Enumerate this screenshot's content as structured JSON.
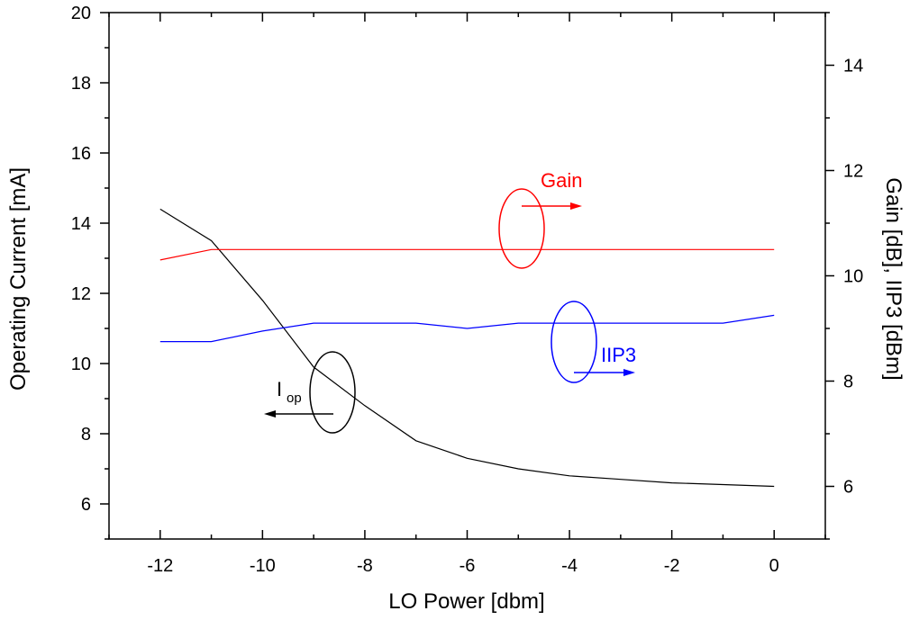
{
  "chart_data": {
    "type": "line",
    "xlabel": "LO Power [dbm]",
    "ylabel_left": "Operating Current [mA]",
    "ylabel_right": "Gain [dB], IIP3 [dBm]",
    "xlim": [
      -13,
      1
    ],
    "ylim_left": [
      5,
      20
    ],
    "ylim_right": [
      5,
      15
    ],
    "x_ticks": [
      -12,
      -10,
      -8,
      -6,
      -4,
      -2,
      0
    ],
    "x_minor_ticks": [
      -13,
      -11,
      -9,
      -7,
      -5,
      -3,
      -1,
      1
    ],
    "y_left_ticks": [
      6,
      8,
      10,
      12,
      14,
      16,
      18,
      20
    ],
    "y_left_minor_ticks": [
      5,
      7,
      9,
      11,
      13,
      15,
      17,
      19
    ],
    "y_right_ticks": [
      6,
      8,
      10,
      12,
      14
    ],
    "y_right_minor_ticks": [
      5,
      7,
      9,
      11,
      13,
      15
    ],
    "grid": false,
    "series": [
      {
        "key": "iop",
        "axis": "left",
        "color": "#000000",
        "x": [
          -12,
          -11,
          -10,
          -9,
          -8,
          -7,
          -6,
          -5,
          -4,
          -3,
          -2,
          -1,
          0
        ],
        "values": [
          14.4,
          13.5,
          11.8,
          9.9,
          8.8,
          7.8,
          7.3,
          7.0,
          6.8,
          6.7,
          6.6,
          6.55,
          6.5
        ]
      },
      {
        "key": "gain",
        "axis": "right",
        "color": "#ff0000",
        "x": [
          -12,
          -11,
          -10,
          -9,
          -8,
          -7,
          -6,
          -5,
          -4,
          -3,
          -2,
          -1,
          0
        ],
        "values": [
          10.3,
          10.5,
          10.5,
          10.5,
          10.5,
          10.5,
          10.5,
          10.5,
          10.5,
          10.5,
          10.5,
          10.5,
          10.5
        ]
      },
      {
        "key": "iip3",
        "axis": "right",
        "color": "#0000ff",
        "x": [
          -12,
          -11,
          -10,
          -9,
          -8,
          -7,
          -6,
          -5,
          -4,
          -3,
          -2,
          -1,
          0
        ],
        "values": [
          8.75,
          8.75,
          8.95,
          9.1,
          9.1,
          9.1,
          9.0,
          9.1,
          9.1,
          9.1,
          9.1,
          9.1,
          9.25
        ]
      }
    ],
    "annotations": {
      "gain": {
        "text": "Gain",
        "color": "#ff0000"
      },
      "iip3": {
        "text": "IIP3",
        "color": "#0000ff"
      },
      "iop": {
        "text": "I",
        "subscript": "op",
        "color": "#000000"
      }
    }
  }
}
